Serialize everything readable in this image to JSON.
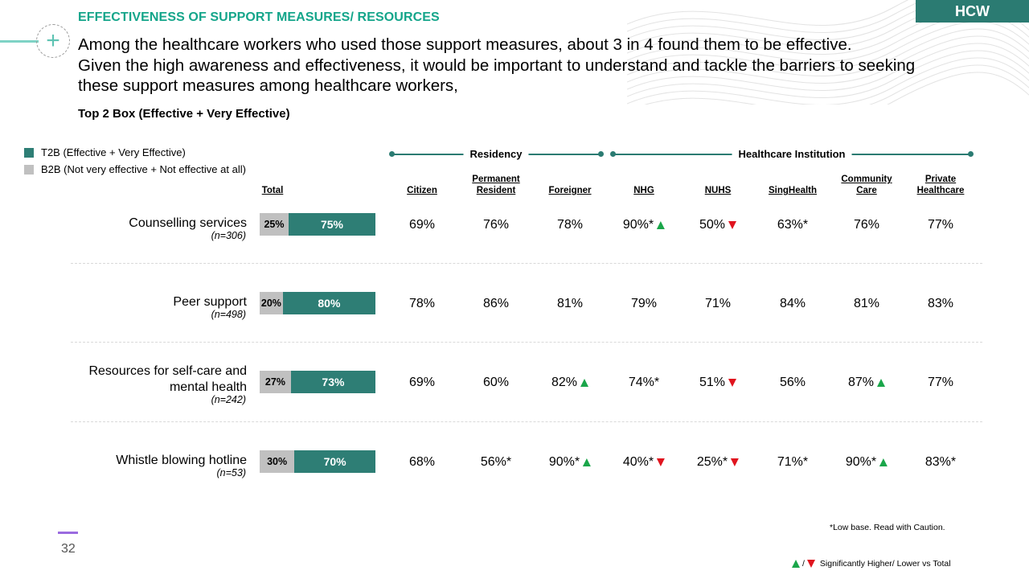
{
  "header": {
    "badge": "HCW",
    "section_title": "EFFECTIVENESS OF SUPPORT MEASURES/ RESOURCES",
    "headline": [
      "Among the healthcare workers who used those support measures, about 3 in 4 found them to be effective.",
      "Given the high awareness and effectiveness, it would be important to understand and tackle the barriers to seeking",
      "these support measures among healthcare workers,"
    ],
    "subtitle": "Top 2 Box (Effective + Very Effective)"
  },
  "colors": {
    "t2b": "#2e7e75",
    "b2b": "#c0c0c0",
    "accent": "#14a58a",
    "up": "#1aa64a",
    "down": "#e0141e"
  },
  "legend": [
    {
      "label": "T2B (Effective + Very Effective)",
      "color": "#2e7e75"
    },
    {
      "label": "B2B (Not very effective + Not effective at all)",
      "color": "#c0c0c0"
    }
  ],
  "groups": {
    "residency": "Residency",
    "institution": "Healthcare Institution"
  },
  "columns": {
    "total": "Total",
    "citizen": "Citizen",
    "pr": [
      "Permanent",
      "Resident"
    ],
    "foreigner": "Foreigner",
    "nhg": "NHG",
    "nuhs": "NUHS",
    "singhealth": "SingHealth",
    "community": [
      "Community",
      "Care"
    ],
    "private": [
      "Private",
      "Healthcare"
    ]
  },
  "chart_data": {
    "type": "bar",
    "orientation": "horizontal-stacked",
    "title": "Top 2 Box (Effective + Very Effective)",
    "categories": [
      "Counselling services",
      "Peer support",
      "Resources for self-care and mental health",
      "Whistle blowing hotline"
    ],
    "bases": [
      "(n=306)",
      "(n=498)",
      "(n=242)",
      "(n=53)"
    ],
    "series": [
      {
        "name": "B2B (Not very effective + Not effective at all)",
        "values": [
          25,
          20,
          27,
          30
        ],
        "labels": [
          "25%",
          "20%",
          "27%",
          "30%"
        ]
      },
      {
        "name": "T2B (Effective + Very Effective)",
        "values": [
          75,
          80,
          73,
          70
        ],
        "labels": [
          "75%",
          "80%",
          "73%",
          "70%"
        ]
      }
    ],
    "xlim": [
      0,
      100
    ]
  },
  "rows": [
    {
      "label_lines": [
        "Counselling services"
      ],
      "n": "(n=306)",
      "cells": [
        {
          "text": "69%",
          "sig": ""
        },
        {
          "text": "76%",
          "sig": ""
        },
        {
          "text": "78%",
          "sig": ""
        },
        {
          "text": "90%*",
          "sig": "up"
        },
        {
          "text": "50%",
          "sig": "down"
        },
        {
          "text": "63%*",
          "sig": ""
        },
        {
          "text": "76%",
          "sig": ""
        },
        {
          "text": "77%",
          "sig": ""
        }
      ]
    },
    {
      "label_lines": [
        "Peer support"
      ],
      "n": "(n=498)",
      "cells": [
        {
          "text": "78%",
          "sig": ""
        },
        {
          "text": "86%",
          "sig": ""
        },
        {
          "text": "81%",
          "sig": ""
        },
        {
          "text": "79%",
          "sig": ""
        },
        {
          "text": "71%",
          "sig": ""
        },
        {
          "text": "84%",
          "sig": ""
        },
        {
          "text": "81%",
          "sig": ""
        },
        {
          "text": "83%",
          "sig": ""
        }
      ]
    },
    {
      "label_lines": [
        "Resources for self-care and",
        "mental health"
      ],
      "n": "(n=242)",
      "cells": [
        {
          "text": "69%",
          "sig": ""
        },
        {
          "text": "60%",
          "sig": ""
        },
        {
          "text": "82%",
          "sig": "up"
        },
        {
          "text": "74%*",
          "sig": ""
        },
        {
          "text": "51%",
          "sig": "down"
        },
        {
          "text": "56%",
          "sig": ""
        },
        {
          "text": "87%",
          "sig": "up"
        },
        {
          "text": "77%",
          "sig": ""
        }
      ]
    },
    {
      "label_lines": [
        "Whistle blowing hotline"
      ],
      "n": "(n=53)",
      "cells": [
        {
          "text": "68%",
          "sig": ""
        },
        {
          "text": "56%*",
          "sig": ""
        },
        {
          "text": "90%*",
          "sig": "up"
        },
        {
          "text": "40%*",
          "sig": "down"
        },
        {
          "text": "25%*",
          "sig": "down"
        },
        {
          "text": "71%*",
          "sig": ""
        },
        {
          "text": "90%*",
          "sig": "up"
        },
        {
          "text": "83%*",
          "sig": ""
        }
      ]
    }
  ],
  "footer": {
    "footnote": "*Low base. Read with Caution.",
    "sig_note": "Significantly Higher/ Lower vs Total",
    "sig_sep": "/",
    "page_number": "32"
  }
}
